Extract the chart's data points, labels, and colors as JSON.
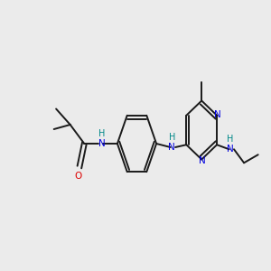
{
  "bg_color": "#ebebeb",
  "bond_color": "#1a1a1a",
  "N_color": "#0000e0",
  "O_color": "#dd0000",
  "NH_color": "#008888",
  "lw": 1.4,
  "fs": 7.5,
  "xlim": [
    0,
    10
  ],
  "ylim": [
    2,
    8
  ]
}
